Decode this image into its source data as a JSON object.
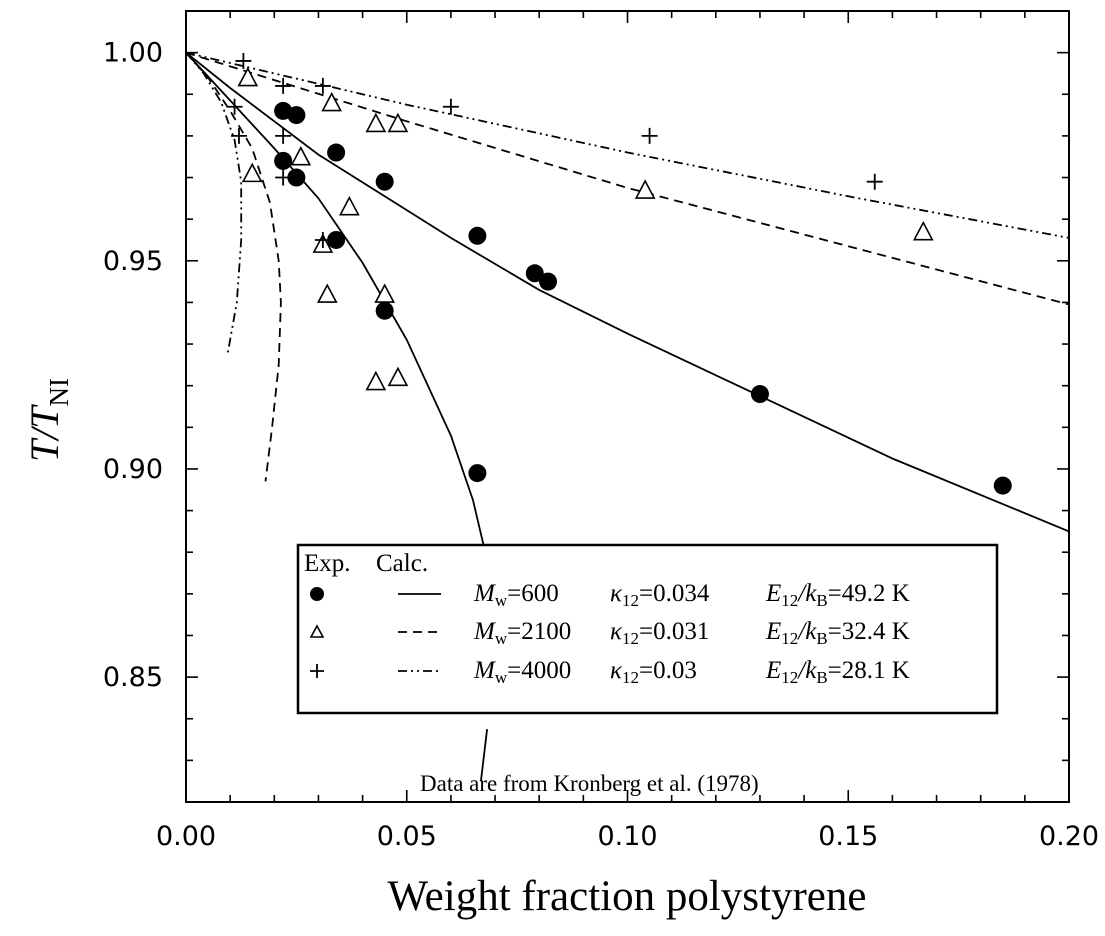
{
  "chart_data": {
    "type": "scatter",
    "title": "",
    "xlabel": "Weight fraction polystyrene",
    "ylabel_main": "T/T",
    "ylabel_sub": "NI",
    "xlim": [
      0.0,
      0.2
    ],
    "ylim": [
      0.82,
      1.01
    ],
    "x_tick_labels": [
      "0.00",
      "0.05",
      "0.10",
      "0.15",
      "0.20"
    ],
    "x_ticks": [
      0.0,
      0.05,
      0.1,
      0.15,
      0.2
    ],
    "y_tick_labels": [
      "0.85",
      "0.90",
      "0.95",
      "1.00"
    ],
    "y_ticks": [
      0.85,
      0.9,
      0.95,
      1.0
    ],
    "grid": false,
    "annotation": "Data are from Kronberg et al. (1978)",
    "legend": {
      "placement": "center-right",
      "header_exp": "Exp.",
      "header_calc": "Calc.",
      "rows": [
        {
          "mw_label": "M",
          "mw_sub": "w",
          "mw_value": "=600",
          "kappa_label": "κ",
          "kappa_sub": "12",
          "kappa_value": "=0.034",
          "e_label": "E",
          "e_sub": "12",
          "e_slash": "/k",
          "e_sub2": "B",
          "e_value": "=49.2 K"
        },
        {
          "mw_label": "M",
          "mw_sub": "w",
          "mw_value": "=2100",
          "kappa_label": "κ",
          "kappa_sub": "12",
          "kappa_value": "=0.031",
          "e_label": "E",
          "e_sub": "12",
          "e_slash": "/k",
          "e_sub2": "B",
          "e_value": "=32.4 K"
        },
        {
          "mw_label": "M",
          "mw_sub": "w",
          "mw_value": "=4000",
          "kappa_label": "κ",
          "kappa_sub": "12",
          "kappa_value": "=0.03",
          "e_label": "E",
          "e_sub": "12",
          "e_slash": "/k",
          "e_sub2": "B",
          "e_value": "=28.1 K"
        }
      ]
    },
    "series": [
      {
        "marker": "filled-circle",
        "points": [
          [
            0.022,
            0.986
          ],
          [
            0.025,
            0.985
          ],
          [
            0.022,
            0.974
          ],
          [
            0.025,
            0.97
          ],
          [
            0.034,
            0.976
          ],
          [
            0.045,
            0.969
          ],
          [
            0.034,
            0.955
          ],
          [
            0.045,
            0.938
          ],
          [
            0.066,
            0.956
          ],
          [
            0.066,
            0.899
          ],
          [
            0.079,
            0.947
          ],
          [
            0.082,
            0.945
          ],
          [
            0.13,
            0.918
          ],
          [
            0.185,
            0.896
          ]
        ]
      },
      {
        "marker": "open-triangle",
        "points": [
          [
            0.014,
            0.994
          ],
          [
            0.015,
            0.971
          ],
          [
            0.026,
            0.975
          ],
          [
            0.031,
            0.954
          ],
          [
            0.032,
            0.942
          ],
          [
            0.033,
            0.988
          ],
          [
            0.037,
            0.963
          ],
          [
            0.043,
            0.983
          ],
          [
            0.043,
            0.921
          ],
          [
            0.045,
            0.942
          ],
          [
            0.048,
            0.983
          ],
          [
            0.048,
            0.922
          ],
          [
            0.104,
            0.967
          ],
          [
            0.167,
            0.957
          ]
        ]
      },
      {
        "marker": "plus",
        "points": [
          [
            0.011,
            0.987
          ],
          [
            0.012,
            0.98
          ],
          [
            0.013,
            0.998
          ],
          [
            0.022,
            0.992
          ],
          [
            0.022,
            0.98
          ],
          [
            0.022,
            0.97
          ],
          [
            0.031,
            0.992
          ],
          [
            0.031,
            0.955
          ],
          [
            0.06,
            0.987
          ],
          [
            0.105,
            0.98
          ],
          [
            0.156,
            0.969
          ]
        ]
      }
    ],
    "curves": [
      {
        "style": "solid",
        "points": [
          [
            0.0,
            1.0
          ],
          [
            0.01,
            0.9915
          ],
          [
            0.02,
            0.9835
          ],
          [
            0.03,
            0.9755
          ],
          [
            0.045,
            0.9655
          ],
          [
            0.06,
            0.9555
          ],
          [
            0.08,
            0.943
          ],
          [
            0.1,
            0.9325
          ],
          [
            0.13,
            0.9175
          ],
          [
            0.16,
            0.9025
          ],
          [
            0.2,
            0.885
          ]
        ]
      },
      {
        "style": "solid",
        "points": [
          [
            0.0,
            1.0
          ],
          [
            0.01,
            0.9885
          ],
          [
            0.02,
            0.977
          ],
          [
            0.03,
            0.965
          ],
          [
            0.04,
            0.9495
          ],
          [
            0.05,
            0.931
          ],
          [
            0.06,
            0.908
          ],
          [
            0.065,
            0.8925
          ],
          [
            0.068,
            0.879
          ],
          [
            0.0705,
            0.866
          ]
        ]
      },
      {
        "style": "solid",
        "points": [
          [
            0.0682,
            0.8375
          ],
          [
            0.0668,
            0.825
          ]
        ]
      },
      {
        "style": "dashed",
        "points": [
          [
            0.0,
            1.0
          ],
          [
            0.05,
            0.9835
          ],
          [
            0.1,
            0.9675
          ],
          [
            0.15,
            0.9535
          ],
          [
            0.2,
            0.9395
          ]
        ]
      },
      {
        "style": "dashed",
        "points": [
          [
            0.0,
            1.0
          ],
          [
            0.005,
            0.994
          ],
          [
            0.01,
            0.986
          ],
          [
            0.015,
            0.977
          ],
          [
            0.019,
            0.964
          ],
          [
            0.021,
            0.95
          ],
          [
            0.0215,
            0.94
          ],
          [
            0.021,
            0.925
          ],
          [
            0.0195,
            0.91
          ],
          [
            0.018,
            0.897
          ]
        ]
      },
      {
        "style": "dashdotdot",
        "points": [
          [
            0.0,
            1.0
          ],
          [
            0.05,
            0.9875
          ],
          [
            0.1,
            0.976
          ],
          [
            0.15,
            0.9655
          ],
          [
            0.2,
            0.9555
          ]
        ]
      },
      {
        "style": "dashdotdot",
        "points": [
          [
            0.0,
            1.0
          ],
          [
            0.004,
            0.995
          ],
          [
            0.008,
            0.988
          ],
          [
            0.011,
            0.979
          ],
          [
            0.0125,
            0.969
          ],
          [
            0.0125,
            0.955
          ],
          [
            0.0115,
            0.94
          ],
          [
            0.0095,
            0.928
          ]
        ]
      }
    ]
  }
}
